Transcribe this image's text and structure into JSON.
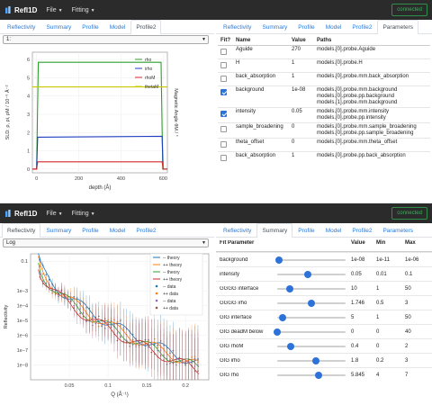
{
  "app": {
    "brand": "Refl1D",
    "menus": [
      "File",
      "Fitting"
    ],
    "status": "connected"
  },
  "colors": {
    "accent": "#2d72d9",
    "navbar": "#2b2b2b",
    "connected": "#3cb15c"
  },
  "top": {
    "left_tabs": [
      "Reflectivity",
      "Summary",
      "Profile",
      "Model",
      "Profile2"
    ],
    "left_active": "Profile2",
    "model_select": "1:",
    "right_tabs": [
      "Reflectivity",
      "Summary",
      "Profile",
      "Model",
      "Profile2",
      "Parameters"
    ],
    "right_active": "Parameters",
    "table_headers": [
      "Fit?",
      "Name",
      "Value",
      "Paths"
    ],
    "params": [
      {
        "fit": false,
        "name": "Aguide",
        "value": "270",
        "paths": [
          "models.[0].probe.Aguide"
        ]
      },
      {
        "fit": false,
        "name": "H",
        "value": "1",
        "paths": [
          "models.[0].probe.H"
        ]
      },
      {
        "fit": false,
        "name": "back_absorption",
        "value": "1",
        "paths": [
          "models.[0].probe.mm.back_absorption"
        ]
      },
      {
        "fit": true,
        "name": "background",
        "value": "1e-08",
        "paths": [
          "models.[0].probe.mm.background",
          "models.[0].probe.pp.background",
          "models.[1].probe.mm.background"
        ]
      },
      {
        "fit": true,
        "name": "intensity",
        "value": "0.05",
        "paths": [
          "models.[0].probe.mm.intensity",
          "models.[0].probe.pp.intensity"
        ]
      },
      {
        "fit": false,
        "name": "sample_broadening",
        "value": "0",
        "paths": [
          "models.[0].probe.mm.sample_broadening",
          "models.[0].probe.pp.sample_broadening"
        ]
      },
      {
        "fit": false,
        "name": "theta_offset",
        "value": "0",
        "paths": [
          "models.[0].probe.mm.theta_offset"
        ]
      },
      {
        "fit": false,
        "name": "back_absorption",
        "value": "1",
        "paths": [
          "models.[0].probe.pp.back_absorption"
        ]
      }
    ]
  },
  "bottom": {
    "left_tabs": [
      "Reflectivity",
      "Summary",
      "Profile",
      "Model",
      "Profile2"
    ],
    "left_active": "Reflectivity",
    "scale_select": "Log",
    "right_tabs": [
      "Reflectivity",
      "Summary",
      "Profile",
      "Model",
      "Profile2",
      "Parameters"
    ],
    "right_active": "Summary",
    "summary_headers": [
      "Fit Parameter",
      "Value",
      "Min",
      "Max"
    ],
    "summary": [
      {
        "name": "background",
        "value": "1e-08",
        "min": "1e-11",
        "max": "1e-06",
        "pos": 0.03
      },
      {
        "name": "intensity",
        "value": "0.05",
        "min": "0.01",
        "max": "0.1",
        "pos": 0.45
      },
      {
        "name": "GGGG interface",
        "value": "10",
        "min": "1",
        "max": "50",
        "pos": 0.18
      },
      {
        "name": "GGGG irho",
        "value": "1.746",
        "min": "0.5",
        "max": "3",
        "pos": 0.5
      },
      {
        "name": "GIG interface",
        "value": "5",
        "min": "1",
        "max": "50",
        "pos": 0.08
      },
      {
        "name": "GIG deadM below",
        "value": "0",
        "min": "0",
        "max": "40",
        "pos": 0.0
      },
      {
        "name": "GIG rhoM",
        "value": "0.4",
        "min": "0",
        "max": "2",
        "pos": 0.2
      },
      {
        "name": "GIG irho",
        "value": "1.8",
        "min": "0.2",
        "max": "3",
        "pos": 0.57
      },
      {
        "name": "GIG rho",
        "value": "5.845",
        "min": "4",
        "max": "7",
        "pos": 0.61
      }
    ]
  },
  "chart_data": [
    {
      "type": "line",
      "xlabel": "depth (Å)",
      "ylabel": "SLD: ρ, ρi, ρM / 10⁻⁶ Å⁻²",
      "y2label": "Magnetic Angle θM / °",
      "xlim": [
        -20,
        620
      ],
      "ylim": [
        -0.2,
        6.4
      ],
      "xticks": [
        "0",
        "200",
        "400",
        "600"
      ],
      "yticks": [
        "0",
        "1",
        "2",
        "3",
        "4",
        "5",
        "6"
      ],
      "series": [
        {
          "name": "rho",
          "color": "#2ca02c",
          "x": [
            -20,
            0,
            8,
            590,
            598,
            620
          ],
          "values": [
            0,
            0,
            5.85,
            5.85,
            0,
            0
          ]
        },
        {
          "name": "irho",
          "color": "#1f3fc0",
          "x": [
            -20,
            0,
            5,
            595,
            600,
            620
          ],
          "values": [
            0,
            0,
            1.75,
            1.8,
            0,
            0
          ]
        },
        {
          "name": "rhoM",
          "color": "#d62728",
          "x": [
            -20,
            0,
            5,
            595,
            600,
            620
          ],
          "values": [
            0,
            0,
            0.4,
            0.4,
            0,
            0
          ]
        },
        {
          "name": "thetaM",
          "color": "#c8c800",
          "x": [
            -20,
            620
          ],
          "values": [
            4.5,
            4.5
          ]
        }
      ]
    },
    {
      "type": "scatter",
      "xlabel": "Q (Å⁻¹)",
      "ylabel": "Reflectivity",
      "log_y": true,
      "xlim": [
        0,
        0.23
      ],
      "yticks": [
        "0.1",
        "1e−3",
        "1e−4",
        "1e−5",
        "1e−6",
        "1e−7",
        "1e−8"
      ],
      "xticks": [
        "0.05",
        "0.1",
        "0.15",
        "0.2"
      ],
      "legend": [
        "-- theory",
        "++ theory",
        "-- theory",
        "++ theory",
        "-- data",
        "++ data",
        "-- data",
        "++ data"
      ],
      "legend_colors": [
        "#1f77b4",
        "#ff7f0e",
        "#2ca02c",
        "#d62728",
        "#1f77b4",
        "#ff7f0e",
        "#9467bd",
        "#8c564b"
      ]
    }
  ]
}
